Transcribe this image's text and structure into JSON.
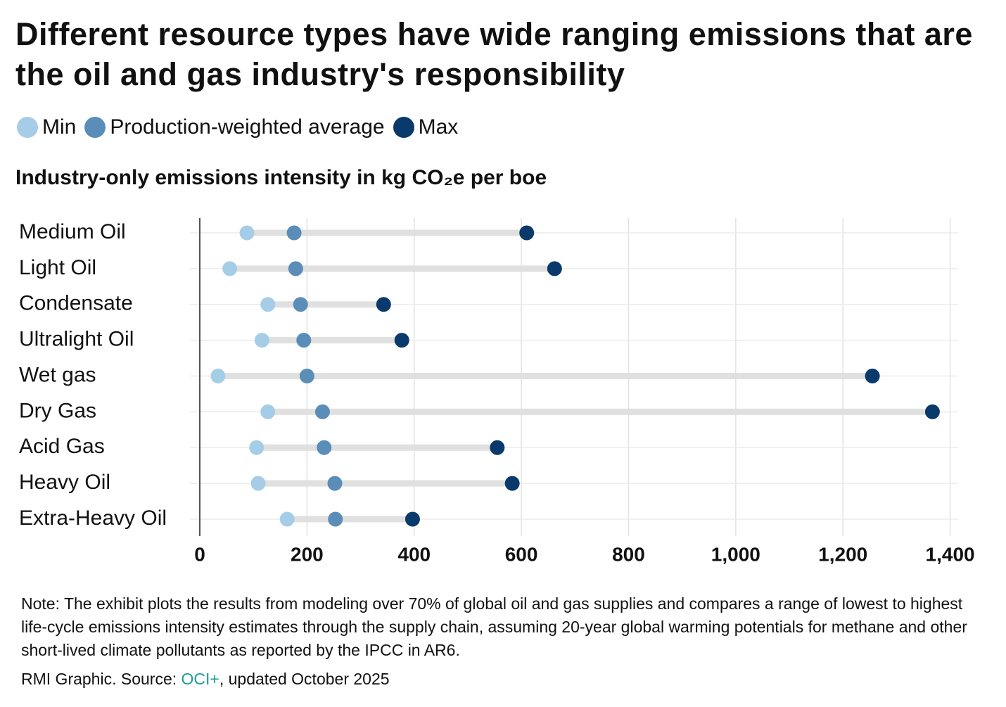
{
  "chart_data": {
    "type": "dumbbell",
    "title": "Different resource types have wide ranging emissions that are the oil and gas industry's responsibility",
    "subtitle": "Industry-only emissions intensity in kg CO₂e per boe",
    "categories": [
      "Medium Oil",
      "Light Oil",
      "Condensate",
      "Ultralight Oil",
      "Wet gas",
      "Dry Gas",
      "Acid Gas",
      "Heavy Oil",
      "Extra-Heavy Oil"
    ],
    "series": [
      {
        "name": "Min",
        "color": "#a6cde8",
        "values": [
          88,
          56,
          127,
          116,
          34,
          127,
          106,
          109,
          163
        ]
      },
      {
        "name": "Production-weighted average",
        "color": "#5a8db8",
        "values": [
          176,
          179,
          188,
          194,
          200,
          229,
          232,
          252,
          253
        ]
      },
      {
        "name": "Max",
        "color": "#0a3a6b",
        "values": [
          610,
          662,
          343,
          377,
          1255,
          1367,
          555,
          583,
          397
        ]
      }
    ],
    "xlim": [
      0,
      1415
    ],
    "xticks": [
      0,
      200,
      400,
      600,
      800,
      {
        "value": 1000,
        "label": "1,000"
      },
      {
        "value": 1200,
        "label": "1,200"
      },
      {
        "value": 1400,
        "label": "1,400"
      }
    ],
    "grid": true,
    "note": "Note: The exhibit plots the results from modeling over 70% of global oil and gas supplies and compares a range of lowest to highest life-cycle emissions intensity estimates through the supply chain, assuming 20-year global warming potentials for methane and other short-lived climate pollutants as reported by the IPCC in AR6.",
    "source": {
      "prefix": "RMI Graphic. Source:",
      "link": "OCI+",
      "suffix": ", updated October 2025"
    }
  }
}
